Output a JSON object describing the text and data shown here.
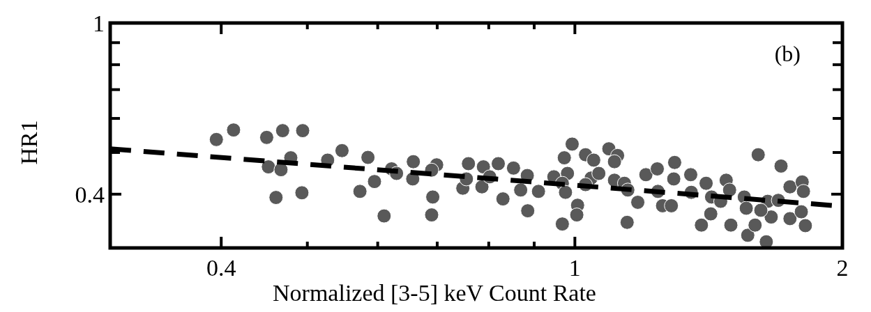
{
  "chart_data": {
    "type": "scatter",
    "xlabel": "Normalized [3-5] keV Count Rate",
    "ylabel": "HR1",
    "annotations": [
      "(b)"
    ],
    "log": "xy",
    "xlim": [
      0.3,
      2
    ],
    "ylim": [
      0.3,
      1
    ],
    "xticks": [
      0.4,
      {
        "value": 0.5,
        "label": null
      },
      {
        "value": 0.6,
        "label": null
      },
      {
        "value": 0.7,
        "label": null
      },
      {
        "value": 0.8,
        "label": null
      },
      {
        "value": 0.9,
        "label": null
      },
      1,
      2
    ],
    "yticks": [
      0.4,
      {
        "value": 0.5,
        "label": null
      },
      {
        "value": 0.6,
        "label": null
      },
      {
        "value": 0.7,
        "label": null
      },
      {
        "value": 0.8,
        "label": null
      },
      {
        "value": 0.9,
        "label": null
      },
      1
    ],
    "series": [
      {
        "color": "#595959",
        "marker": "circle",
        "x": [
          0.395,
          0.413,
          0.45,
          0.469,
          0.494,
          0.452,
          0.467,
          0.479,
          0.461,
          0.493,
          0.527,
          0.547,
          0.585,
          0.573,
          0.595,
          0.61,
          0.622,
          0.63,
          0.658,
          0.657,
          0.699,
          0.692,
          0.69,
          0.69,
          0.759,
          0.748,
          0.755,
          0.789,
          0.786,
          0.802,
          0.82,
          0.853,
          0.83,
          0.884,
          0.869,
          0.91,
          0.885,
          0.947,
          0.973,
          0.993,
          0.981,
          0.968,
          0.976,
          1.007,
          1.005,
          0.968,
          1.028,
          1.05,
          1.092,
          1.117,
          1.108,
          1.043,
          1.064,
          1.028,
          1.108,
          1.137,
          1.147,
          1.177,
          1.145,
          1.202,
          1.238,
          1.295,
          1.292,
          1.24,
          1.255,
          1.284,
          1.35,
          1.352,
          1.405,
          1.425,
          1.422,
          1.388,
          1.48,
          1.493,
          1.459,
          1.551,
          1.559,
          1.608,
          1.565,
          1.642,
          1.595,
          1.663,
          1.648,
          1.694,
          1.706,
          1.498,
          1.746,
          1.798,
          1.817,
          1.746,
          1.802,
          1.808,
          1.619
        ],
        "values": [
          0.536,
          0.564,
          0.542,
          0.562,
          0.562,
          0.463,
          0.456,
          0.486,
          0.393,
          0.403,
          0.48,
          0.505,
          0.487,
          0.406,
          0.428,
          0.356,
          0.458,
          0.447,
          0.476,
          0.434,
          0.468,
          0.394,
          0.358,
          0.455,
          0.471,
          0.413,
          0.434,
          0.463,
          0.416,
          0.439,
          0.471,
          0.46,
          0.39,
          0.442,
          0.409,
          0.406,
          0.366,
          0.439,
          0.486,
          0.523,
          0.447,
          0.424,
          0.404,
          0.377,
          0.358,
          0.341,
          0.494,
          0.48,
          0.51,
          0.492,
          0.476,
          0.436,
          0.447,
          0.421,
          0.431,
          0.424,
          0.409,
          0.383,
          0.344,
          0.444,
          0.458,
          0.474,
          0.434,
          0.406,
          0.376,
          0.376,
          0.444,
          0.404,
          0.424,
          0.394,
          0.36,
          0.339,
          0.431,
          0.409,
          0.385,
          0.394,
          0.371,
          0.494,
          0.321,
          0.31,
          0.339,
          0.354,
          0.385,
          0.387,
          0.465,
          0.339,
          0.351,
          0.364,
          0.338,
          0.416,
          0.427,
          0.406,
          0.367
        ]
      },
      {
        "type": "line",
        "color": "#000000",
        "line_style": "dashed",
        "x": [
          0.3,
          2
        ],
        "values": [
          0.51,
          0.375
        ]
      }
    ]
  }
}
